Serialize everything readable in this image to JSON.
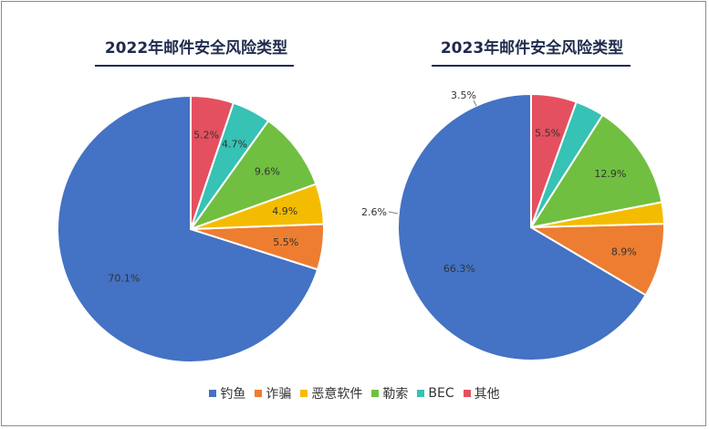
{
  "chart_data": [
    {
      "type": "pie",
      "title": "2022年邮件安全风险类型",
      "categories": [
        "钓鱼",
        "诈骗",
        "恶意软件",
        "勒索",
        "BEC",
        "其他"
      ],
      "values": [
        70.1,
        5.5,
        4.9,
        9.6,
        4.7,
        5.2
      ],
      "value_labels": [
        "70.1%",
        "5.5%",
        "4.9%",
        "9.6%",
        "4.7%",
        "5.2%"
      ],
      "start_angle_deg": 0,
      "direction": "counterclockwise",
      "legend": "bottom"
    },
    {
      "type": "pie",
      "title": "2023年邮件安全风险类型",
      "categories": [
        "钓鱼",
        "诈骗",
        "恶意软件",
        "勒索",
        "BEC",
        "其他"
      ],
      "values": [
        66.3,
        8.9,
        2.6,
        12.9,
        3.5,
        5.5
      ],
      "value_labels": [
        "66.3%",
        "8.9%",
        "2.6%",
        "12.9%",
        "3.5%",
        "5.5%"
      ],
      "start_angle_deg": 0,
      "direction": "counterclockwise",
      "legend": "bottom"
    }
  ],
  "legend": {
    "items": [
      "钓鱼",
      "诈骗",
      "恶意软件",
      "勒索",
      "BEC",
      "其他"
    ]
  },
  "colors": {
    "钓鱼": "#4472C4",
    "诈骗": "#ED7D31",
    "恶意软件": "#F4BC00",
    "勒索": "#70BF41",
    "BEC": "#36C2B4",
    "其他": "#E4505F",
    "title_text": "#1f2b4c",
    "label_text": "#333333",
    "border": "#8c8c8c"
  }
}
